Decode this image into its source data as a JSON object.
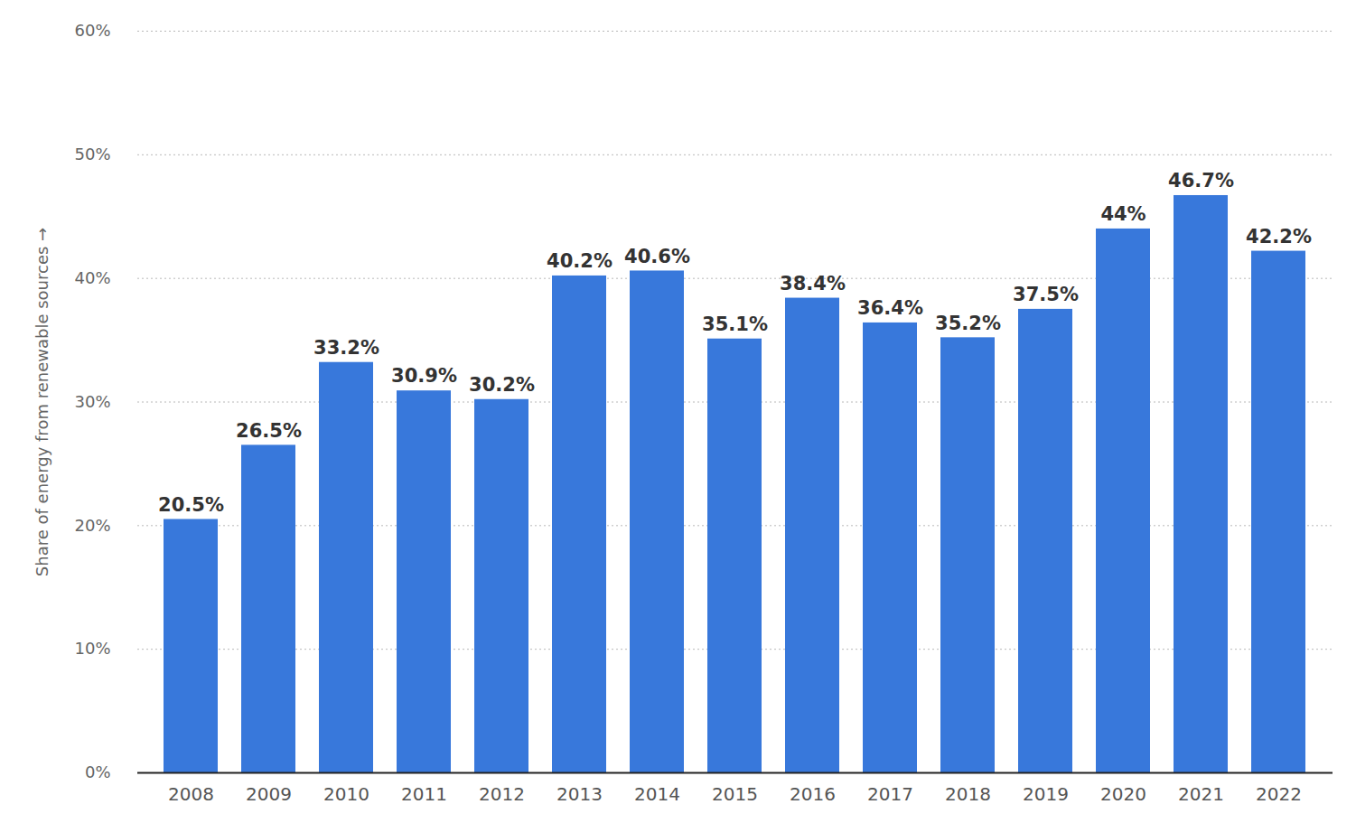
{
  "chart_data": {
    "type": "bar",
    "y_label": "Share of energy from renewable sources",
    "categories": [
      "2008",
      "2009",
      "2010",
      "2011",
      "2012",
      "2013",
      "2014",
      "2015",
      "2016",
      "2017",
      "2018",
      "2019",
      "2020",
      "2021",
      "2022"
    ],
    "values": [
      20.5,
      26.5,
      33.2,
      30.9,
      30.2,
      40.2,
      40.6,
      35.1,
      38.4,
      36.4,
      35.2,
      37.5,
      44,
      46.7,
      42.2
    ],
    "value_labels": [
      "20.5%",
      "26.5%",
      "33.2%",
      "30.9%",
      "30.2%",
      "40.2%",
      "40.6%",
      "35.1%",
      "38.4%",
      "36.4%",
      "35.2%",
      "37.5%",
      "44%",
      "46.7%",
      "42.2%"
    ],
    "color": "#3878db",
    "ylim": [
      0,
      60
    ],
    "yticks": [
      {
        "value": 0,
        "label": "0%"
      },
      {
        "value": 10,
        "label": "10%"
      },
      {
        "value": 20,
        "label": "20%"
      },
      {
        "value": 30,
        "label": "30%"
      },
      {
        "value": 40,
        "label": "40%"
      },
      {
        "value": 50,
        "label": "50%"
      },
      {
        "value": 60,
        "label": "60%"
      }
    ],
    "grid": true,
    "data_labels": true
  }
}
